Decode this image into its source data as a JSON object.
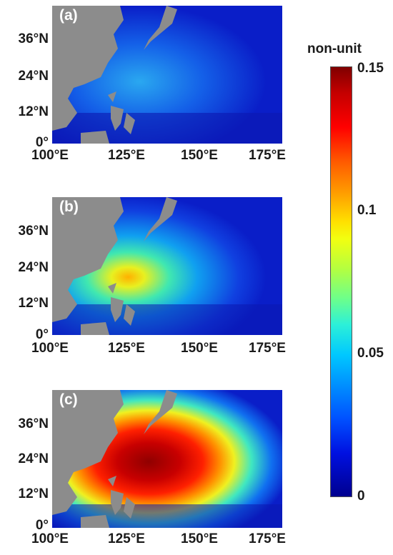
{
  "panels": [
    {
      "label": "(a)",
      "intensity": 0.35
    },
    {
      "label": "(b)",
      "intensity": 0.65
    },
    {
      "label": "(c)",
      "intensity": 1.0
    }
  ],
  "y_ticks": [
    "36°N",
    "24°N",
    "12°N",
    "0°"
  ],
  "x_ticks": [
    "100°E",
    "125°E",
    "150°E",
    "175°E"
  ],
  "colorbar": {
    "title": "non-unit",
    "ticks": [
      "0.15",
      "0.1",
      "0.05",
      "0"
    ],
    "range": [
      0,
      0.15
    ]
  },
  "colors": {
    "land": "#8c8c8c",
    "ocean_low": "#0a1ec8",
    "label": "#ffffff"
  }
}
